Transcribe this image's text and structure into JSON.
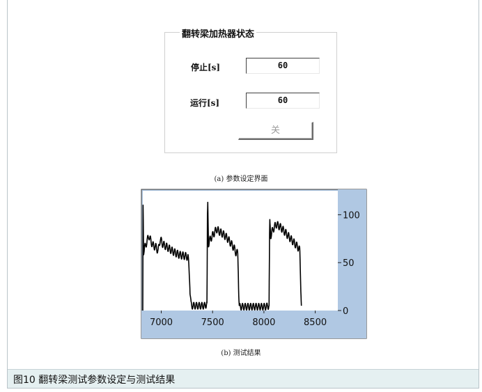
{
  "panel_a": {
    "group_title": "翻转梁加热器状态",
    "stop_label": "停止[s]",
    "stop_value": "60",
    "run_label": "运行[s]",
    "run_value": "60",
    "toggle_button_label": "关",
    "caption": "(a) 参数设定界面"
  },
  "panel_b": {
    "caption": "(b) 测试结果"
  },
  "figure_caption": "图10 翻转梁测试参数设定与测试结果",
  "colors": {
    "plot_background": "#b0c8e3",
    "trace": "#000000",
    "caption_bar": "#e5f0f1"
  },
  "chart_data": {
    "type": "line",
    "title": "",
    "xlabel": "",
    "ylabel": "",
    "xlim": [
      6820,
      8720
    ],
    "ylim": [
      0,
      125
    ],
    "x_ticks": [
      7000,
      7500,
      8000,
      8500
    ],
    "y_ticks": [
      0,
      50,
      100
    ],
    "x_tick_labels": [
      "7000",
      "7500",
      "8000",
      "8500"
    ],
    "y_tick_labels": [
      "0",
      "50",
      "100"
    ],
    "y_axis_side": "right",
    "grid": false,
    "series": [
      {
        "oscillation_amplitude": 7,
        "points": [
          [
            6820,
            0
          ],
          [
            6823,
            110
          ],
          [
            6828,
            62
          ],
          [
            6860,
            72
          ],
          [
            6880,
            78
          ],
          [
            6900,
            72
          ],
          [
            6920,
            68
          ],
          [
            6950,
            66
          ],
          [
            6970,
            62
          ],
          [
            6990,
            75
          ],
          [
            7010,
            70
          ],
          [
            7030,
            68
          ],
          [
            7060,
            66
          ],
          [
            7110,
            62
          ],
          [
            7140,
            60
          ],
          [
            7180,
            58
          ],
          [
            7230,
            57
          ],
          [
            7260,
            56
          ],
          [
            7270,
            45
          ],
          [
            7280,
            20
          ],
          [
            7290,
            6
          ],
          [
            7300,
            5
          ],
          [
            7340,
            5
          ],
          [
            7380,
            5
          ],
          [
            7400,
            5
          ],
          [
            7430,
            5
          ],
          [
            7445,
            8
          ],
          [
            7450,
            100
          ],
          [
            7453,
            113
          ],
          [
            7460,
            70
          ],
          [
            7480,
            75
          ],
          [
            7510,
            80
          ],
          [
            7540,
            85
          ],
          [
            7570,
            82
          ],
          [
            7600,
            80
          ],
          [
            7640,
            76
          ],
          [
            7680,
            70
          ],
          [
            7710,
            65
          ],
          [
            7730,
            60
          ],
          [
            7745,
            60
          ],
          [
            7750,
            40
          ],
          [
            7755,
            15
          ],
          [
            7760,
            4
          ],
          [
            7800,
            4
          ],
          [
            7860,
            4
          ],
          [
            7920,
            4
          ],
          [
            7980,
            4
          ],
          [
            8000,
            4
          ],
          [
            8020,
            4
          ],
          [
            8050,
            5
          ],
          [
            8055,
            80
          ],
          [
            8058,
            95
          ],
          [
            8065,
            78
          ],
          [
            8090,
            85
          ],
          [
            8120,
            90
          ],
          [
            8150,
            88
          ],
          [
            8180,
            85
          ],
          [
            8220,
            80
          ],
          [
            8260,
            75
          ],
          [
            8300,
            70
          ],
          [
            8340,
            65
          ],
          [
            8350,
            62
          ],
          [
            8360,
            20
          ],
          [
            8365,
            5
          ]
        ]
      }
    ]
  }
}
